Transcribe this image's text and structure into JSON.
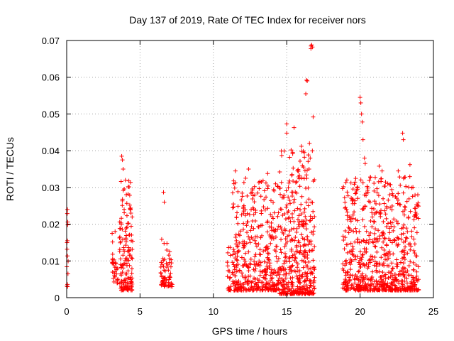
{
  "chart_data": {
    "type": "scatter",
    "title": "Day 137 of 2019, Rate Of TEC Index for receiver nors",
    "xlabel": "GPS time / hours",
    "ylabel": "ROTI / TECUs",
    "xlim": [
      0,
      25
    ],
    "ylim": [
      0,
      0.07
    ],
    "grid": true,
    "marker": "plus",
    "color": "#ff0000",
    "x_ticks": [
      0,
      5,
      10,
      15,
      20,
      25
    ],
    "x_tick_labels": [
      "0",
      "5",
      "10",
      "15",
      "20",
      "25"
    ],
    "y_ticks": [
      0,
      0.01,
      0.02,
      0.03,
      0.04,
      0.05,
      0.06,
      0.07
    ],
    "y_tick_labels": [
      "0",
      "0.01",
      "0.02",
      "0.03",
      "0.04",
      "0.05",
      "0.06",
      "0.07"
    ],
    "clusters": [
      {
        "x_range": [
          0.0,
          0.1
        ],
        "y_range": [
          0.003,
          0.024
        ],
        "count": 12
      },
      {
        "x_range": [
          3.1,
          3.5
        ],
        "y_range": [
          0.004,
          0.018
        ],
        "count": 30
      },
      {
        "x_range": [
          3.6,
          4.5
        ],
        "y_range": [
          0.002,
          0.032
        ],
        "count": 150
      },
      {
        "x_range": [
          6.4,
          6.9
        ],
        "y_range": [
          0.003,
          0.016
        ],
        "count": 40
      },
      {
        "x_range": [
          6.9,
          7.2
        ],
        "y_range": [
          0.003,
          0.013
        ],
        "count": 25
      },
      {
        "x_range": [
          10.9,
          11.2
        ],
        "y_range": [
          0.002,
          0.02
        ],
        "count": 20
      },
      {
        "x_range": [
          11.3,
          14.5
        ],
        "y_range": [
          0.002,
          0.032
        ],
        "count": 420
      },
      {
        "x_range": [
          14.5,
          16.9
        ],
        "y_range": [
          0.001,
          0.04
        ],
        "count": 420
      },
      {
        "x_range": [
          18.8,
          24.0
        ],
        "y_range": [
          0.002,
          0.033
        ],
        "count": 720
      }
    ],
    "points": [
      [
        0.05,
        0.024
      ],
      [
        0.05,
        0.0155
      ],
      [
        3.1,
        0.0175
      ],
      [
        3.3,
        0.018
      ],
      [
        3.75,
        0.0385
      ],
      [
        3.8,
        0.0375
      ],
      [
        3.85,
        0.035
      ],
      [
        4.0,
        0.032
      ],
      [
        6.6,
        0.0287
      ],
      [
        6.65,
        0.026
      ],
      [
        11.4,
        0.031
      ],
      [
        11.5,
        0.0345
      ],
      [
        12.2,
        0.0325
      ],
      [
        12.4,
        0.035
      ],
      [
        13.7,
        0.0338
      ],
      [
        15.0,
        0.0473
      ],
      [
        15.0,
        0.0448
      ],
      [
        15.3,
        0.0402
      ],
      [
        15.2,
        0.0382
      ],
      [
        15.5,
        0.0463
      ],
      [
        16.0,
        0.0412
      ],
      [
        16.2,
        0.0395
      ],
      [
        16.3,
        0.0555
      ],
      [
        16.35,
        0.0592
      ],
      [
        16.4,
        0.059
      ],
      [
        16.55,
        0.042
      ],
      [
        16.6,
        0.038
      ],
      [
        16.65,
        0.0685
      ],
      [
        16.65,
        0.0678
      ],
      [
        16.7,
        0.0688
      ],
      [
        16.75,
        0.0682
      ],
      [
        16.8,
        0.0492
      ],
      [
        20.0,
        0.0545
      ],
      [
        20.05,
        0.053
      ],
      [
        20.1,
        0.05
      ],
      [
        20.15,
        0.0478
      ],
      [
        20.2,
        0.043
      ],
      [
        20.3,
        0.038
      ],
      [
        20.35,
        0.0365
      ],
      [
        21.3,
        0.0358
      ],
      [
        21.5,
        0.0345
      ],
      [
        22.6,
        0.0345
      ],
      [
        22.9,
        0.0448
      ],
      [
        22.95,
        0.043
      ],
      [
        23.4,
        0.0362
      ]
    ]
  }
}
